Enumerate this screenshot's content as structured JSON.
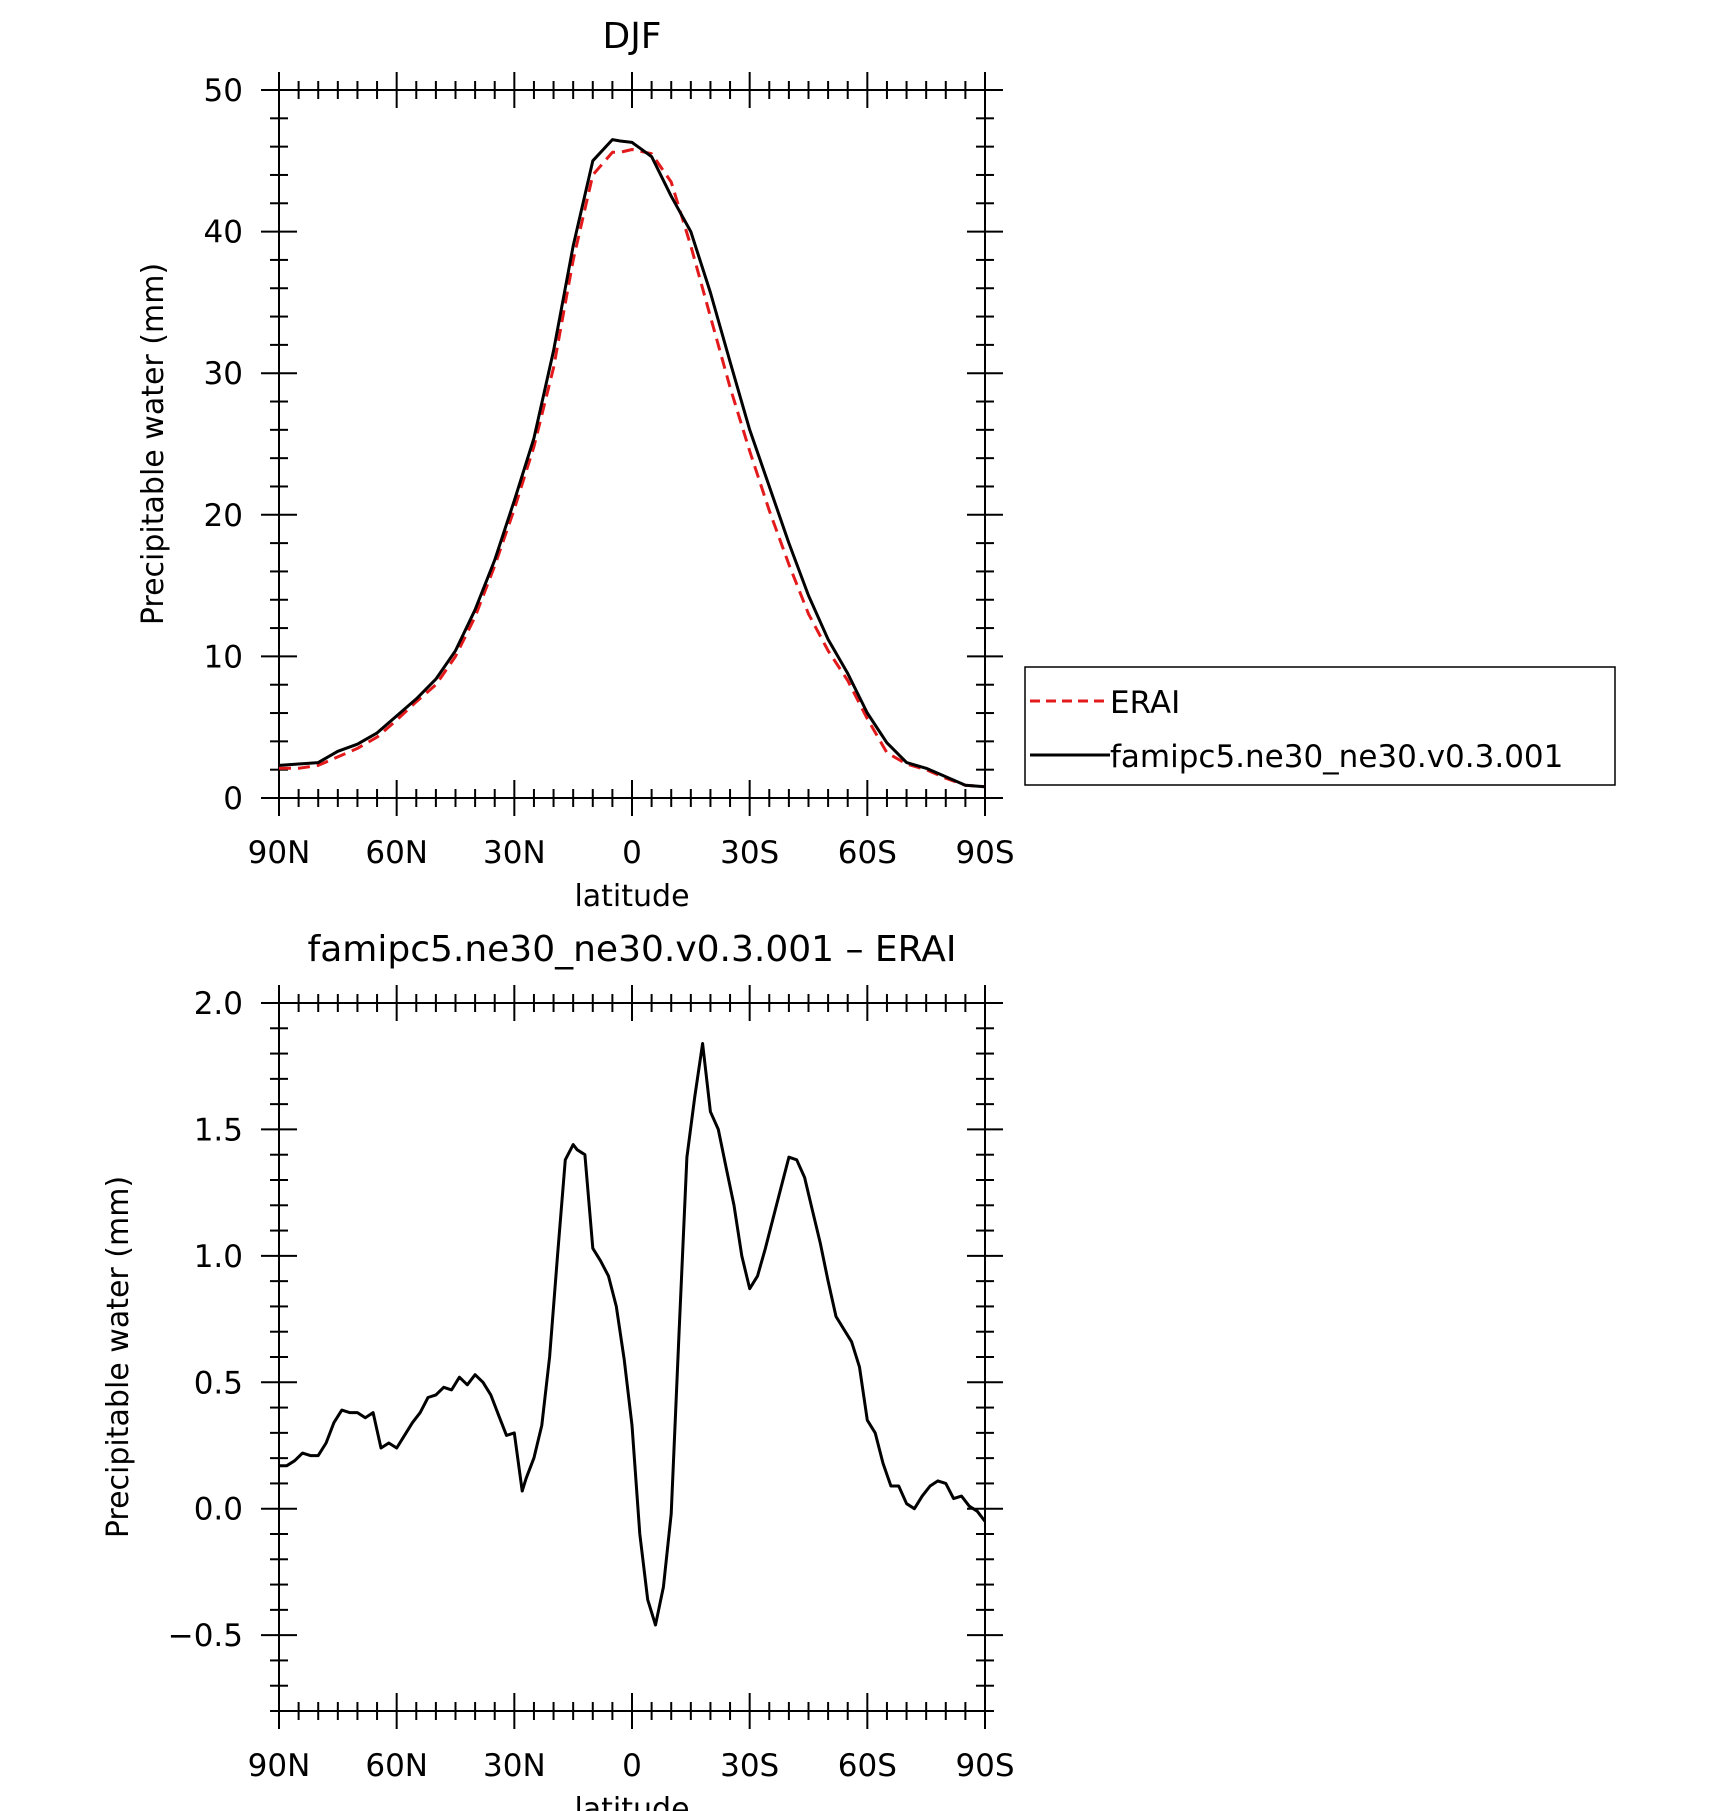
{
  "chart_data": [
    {
      "type": "line",
      "title": "DJF",
      "xlabel": "latitude",
      "ylabel": "Precipitable water (mm)",
      "xlim": [
        90,
        -90
      ],
      "ylim": [
        0,
        50
      ],
      "x_ticks": [
        {
          "value": 90,
          "label": "90N"
        },
        {
          "value": 60,
          "label": "60N"
        },
        {
          "value": 30,
          "label": "30N"
        },
        {
          "value": 0,
          "label": "0"
        },
        {
          "value": -30,
          "label": "30S"
        },
        {
          "value": -60,
          "label": "60S"
        },
        {
          "value": -90,
          "label": "90S"
        }
      ],
      "y_ticks": [
        {
          "value": 0,
          "label": "0"
        },
        {
          "value": 10,
          "label": "10"
        },
        {
          "value": 20,
          "label": "20"
        },
        {
          "value": 30,
          "label": "30"
        },
        {
          "value": 40,
          "label": "40"
        },
        {
          "value": 50,
          "label": "50"
        }
      ],
      "legend_position": "right",
      "series": [
        {
          "name": "ERAI",
          "color": "#e31a1c",
          "dash": true,
          "x": [
            90,
            85,
            80,
            75,
            70,
            65,
            60,
            55,
            50,
            45,
            40,
            35,
            30,
            25,
            20,
            15,
            10,
            5,
            3,
            0,
            -5,
            -10,
            -15,
            -20,
            -25,
            -30,
            -35,
            -40,
            -45,
            -50,
            -55,
            -60,
            -65,
            -70,
            -75,
            -80,
            -85,
            -90
          ],
          "y": [
            2.1,
            2.1,
            2.3,
            2.9,
            3.5,
            4.3,
            5.5,
            6.8,
            8.0,
            10.0,
            12.8,
            16.4,
            20.4,
            24.8,
            30.4,
            38.0,
            44.0,
            45.6,
            45.6,
            45.8,
            45.5,
            43.5,
            39.0,
            34.0,
            29.0,
            24.5,
            20.3,
            16.5,
            13.0,
            10.4,
            8.3,
            5.6,
            3.2,
            2.4,
            2.0,
            1.4,
            0.9,
            0.8
          ]
        },
        {
          "name": "famipc5.ne30_ne30.v0.3.001",
          "color": "#000000",
          "dash": false,
          "x": [
            90,
            85,
            80,
            75,
            70,
            65,
            60,
            55,
            50,
            45,
            40,
            35,
            30,
            25,
            20,
            15,
            10,
            5,
            3,
            0,
            -5,
            -10,
            -15,
            -20,
            -25,
            -30,
            -35,
            -40,
            -45,
            -50,
            -55,
            -60,
            -65,
            -70,
            -75,
            -80,
            -85,
            -90
          ],
          "y": [
            2.3,
            2.4,
            2.5,
            3.3,
            3.8,
            4.6,
            5.8,
            7.0,
            8.4,
            10.4,
            13.3,
            16.8,
            21.0,
            25.4,
            31.6,
            39.0,
            45.0,
            46.5,
            46.4,
            46.3,
            45.3,
            42.5,
            40.0,
            35.7,
            30.8,
            26.0,
            22.0,
            18.0,
            14.3,
            11.2,
            8.8,
            6.0,
            3.9,
            2.5,
            2.1,
            1.5,
            0.9,
            0.8
          ]
        }
      ]
    },
    {
      "type": "line",
      "title": "famipc5.ne30_ne30.v0.3.001 – ERAI",
      "xlabel": "latitude",
      "ylabel": "Precipitable water (mm)",
      "xlim": [
        90,
        -90
      ],
      "ylim": [
        -0.8,
        2.0
      ],
      "x_ticks": [
        {
          "value": 90,
          "label": "90N"
        },
        {
          "value": 60,
          "label": "60N"
        },
        {
          "value": 30,
          "label": "30N"
        },
        {
          "value": 0,
          "label": "0"
        },
        {
          "value": -30,
          "label": "30S"
        },
        {
          "value": -60,
          "label": "60S"
        },
        {
          "value": -90,
          "label": "90S"
        }
      ],
      "y_ticks": [
        {
          "value": -0.5,
          "label": "−0.5"
        },
        {
          "value": 0.0,
          "label": "0.0"
        },
        {
          "value": 0.5,
          "label": "0.5"
        },
        {
          "value": 1.0,
          "label": "1.0"
        },
        {
          "value": 1.5,
          "label": "1.5"
        },
        {
          "value": 2.0,
          "label": "2.0"
        }
      ],
      "series": [
        {
          "color": "#000000",
          "dash": false,
          "x": [
            90,
            88,
            86,
            84,
            82,
            80,
            78,
            76,
            74,
            72,
            70,
            68,
            66,
            64,
            62,
            60,
            58,
            56,
            54,
            52,
            50,
            48,
            46,
            44,
            42,
            40,
            38,
            36,
            34,
            32,
            30,
            28,
            27,
            25,
            23,
            21,
            19,
            17,
            15,
            14,
            12,
            10,
            8,
            6,
            4,
            2,
            0,
            -2,
            -4,
            -6,
            -8,
            -10,
            -12,
            -14,
            -16,
            -18,
            -20,
            -22,
            -24,
            -26,
            -28,
            -30,
            -32,
            -34,
            -36,
            -38,
            -40,
            -42,
            -44,
            -46,
            -48,
            -50,
            -52,
            -54,
            -56,
            -58,
            -60,
            -62,
            -64,
            -66,
            -68,
            -70,
            -72,
            -74,
            -76,
            -78,
            -80,
            -82,
            -84,
            -86,
            -88,
            -90
          ],
          "y": [
            0.17,
            0.17,
            0.19,
            0.22,
            0.21,
            0.21,
            0.26,
            0.34,
            0.39,
            0.38,
            0.38,
            0.36,
            0.38,
            0.24,
            0.26,
            0.24,
            0.29,
            0.34,
            0.38,
            0.44,
            0.45,
            0.48,
            0.47,
            0.52,
            0.49,
            0.53,
            0.5,
            0.45,
            0.37,
            0.29,
            0.3,
            0.07,
            0.12,
            0.2,
            0.33,
            0.6,
            1.0,
            1.38,
            1.44,
            1.42,
            1.4,
            1.03,
            0.98,
            0.92,
            0.8,
            0.59,
            0.33,
            -0.1,
            -0.36,
            -0.46,
            -0.31,
            -0.02,
            0.7,
            1.39,
            1.63,
            1.84,
            1.57,
            1.5,
            1.35,
            1.2,
            1.0,
            0.87,
            0.92,
            1.03,
            1.15,
            1.27,
            1.39,
            1.38,
            1.31,
            1.18,
            1.05,
            0.9,
            0.76,
            0.71,
            0.66,
            0.56,
            0.35,
            0.3,
            0.18,
            0.09,
            0.09,
            0.02,
            0.0,
            0.05,
            0.09,
            0.11,
            0.1,
            0.04,
            0.05,
            0.01,
            -0.01,
            -0.05
          ]
        }
      ]
    }
  ],
  "legend": {
    "entries": [
      {
        "label": "ERAI",
        "color": "#e31a1c",
        "dash": true
      },
      {
        "label": "famipc5.ne30_ne30.v0.3.001",
        "color": "#000000",
        "dash": false
      }
    ]
  }
}
